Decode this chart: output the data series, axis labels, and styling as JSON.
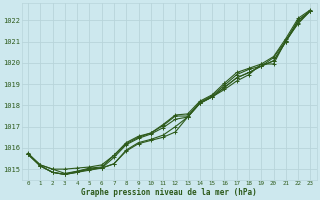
{
  "bg_color": "#cde8ee",
  "grid_color": "#b8d4da",
  "line_color": "#2d5a1b",
  "xlabel": "Graphe pression niveau de la mer (hPa)",
  "ylim": [
    1014.5,
    1022.8
  ],
  "xlim": [
    -0.5,
    23.5
  ],
  "yticks": [
    1015,
    1016,
    1017,
    1018,
    1019,
    1020,
    1021,
    1022
  ],
  "xticks": [
    0,
    1,
    2,
    3,
    4,
    5,
    6,
    7,
    8,
    9,
    10,
    11,
    12,
    13,
    14,
    15,
    16,
    17,
    18,
    19,
    20,
    21,
    22,
    23
  ],
  "series": [
    [
      1015.7,
      1015.15,
      1014.85,
      1014.75,
      1014.85,
      1015.0,
      1015.05,
      1015.25,
      1015.9,
      1016.25,
      1016.4,
      1016.6,
      1017.0,
      1017.45,
      1018.1,
      1018.4,
      1018.85,
      1019.3,
      1019.55,
      1019.85,
      1020.1,
      1021.0,
      1021.9,
      1022.45
    ],
    [
      1015.7,
      1015.15,
      1014.85,
      1014.75,
      1014.85,
      1014.95,
      1015.05,
      1015.55,
      1016.15,
      1016.45,
      1016.65,
      1016.95,
      1017.35,
      1017.45,
      1018.1,
      1018.4,
      1018.85,
      1019.3,
      1019.55,
      1019.85,
      1020.1,
      1021.0,
      1022.0,
      1022.45
    ],
    [
      1015.7,
      1015.15,
      1014.85,
      1014.75,
      1014.9,
      1015.05,
      1015.1,
      1015.65,
      1016.2,
      1016.5,
      1016.7,
      1017.05,
      1017.5,
      1017.5,
      1018.15,
      1018.45,
      1018.95,
      1019.45,
      1019.7,
      1019.85,
      1020.25,
      1021.05,
      1021.85,
      1022.45
    ],
    [
      1015.7,
      1015.2,
      1015.0,
      1015.0,
      1015.05,
      1015.1,
      1015.2,
      1015.65,
      1016.25,
      1016.55,
      1016.7,
      1017.1,
      1017.55,
      1017.6,
      1018.2,
      1018.5,
      1019.05,
      1019.55,
      1019.75,
      1019.95,
      1020.3,
      1021.15,
      1022.1,
      1022.5
    ]
  ],
  "series_top": [
    1015.75,
    1015.2,
    1015.0,
    1014.8,
    1014.9,
    1015.0,
    1015.05,
    1015.25,
    1015.85,
    1016.2,
    1016.35,
    1016.5,
    1016.75,
    1017.45,
    1018.1,
    1018.4,
    1018.75,
    1019.15,
    1019.45,
    1019.95,
    1019.95,
    1021.05,
    1022.0,
    1022.45
  ]
}
